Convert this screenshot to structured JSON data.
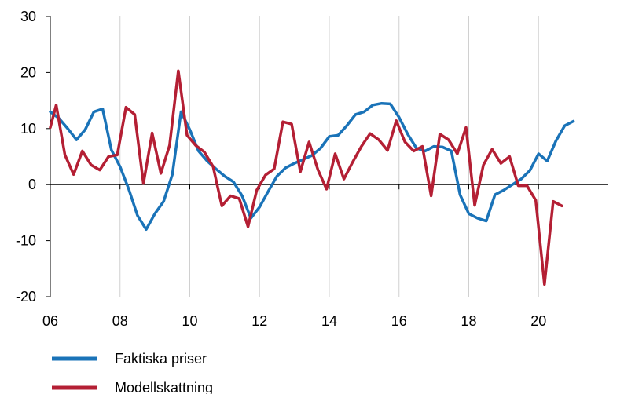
{
  "chart_data": {
    "type": "line",
    "title": "",
    "xlabel": "",
    "ylabel": "",
    "xlim": [
      2006,
      2022
    ],
    "ylim": [
      -20,
      30
    ],
    "x_ticks": [
      {
        "value": 2006,
        "label": "06"
      },
      {
        "value": 2008,
        "label": "08"
      },
      {
        "value": 2010,
        "label": "10"
      },
      {
        "value": 2012,
        "label": "12"
      },
      {
        "value": 2014,
        "label": "14"
      },
      {
        "value": 2016,
        "label": "16"
      },
      {
        "value": 2018,
        "label": "18"
      },
      {
        "value": 2020,
        "label": "20"
      }
    ],
    "y_ticks": [
      {
        "value": 30,
        "label": "30"
      },
      {
        "value": 20,
        "label": "20"
      },
      {
        "value": 10,
        "label": "10"
      },
      {
        "value": 0,
        "label": "0"
      },
      {
        "value": -10,
        "label": "-10"
      },
      {
        "value": -20,
        "label": "-20"
      }
    ],
    "grid": "vertical",
    "legend_position": "bottom-left",
    "series": [
      {
        "name": "Faktiska priser",
        "color": "#1A73B8",
        "points": [
          [
            2006.0,
            13.0
          ],
          [
            2006.25,
            11.8
          ],
          [
            2006.5,
            10.0
          ],
          [
            2006.75,
            8.0
          ],
          [
            2007.0,
            9.8
          ],
          [
            2007.25,
            13.0
          ],
          [
            2007.5,
            13.5
          ],
          [
            2007.75,
            6.2
          ],
          [
            2008.0,
            3.2
          ],
          [
            2008.25,
            -0.8
          ],
          [
            2008.5,
            -5.5
          ],
          [
            2008.75,
            -8.0
          ],
          [
            2009.0,
            -5.2
          ],
          [
            2009.25,
            -3.0
          ],
          [
            2009.5,
            1.8
          ],
          [
            2009.75,
            13.0
          ],
          [
            2010.0,
            9.8
          ],
          [
            2010.25,
            6.0
          ],
          [
            2010.5,
            4.2
          ],
          [
            2010.75,
            2.8
          ],
          [
            2011.0,
            1.5
          ],
          [
            2011.25,
            0.5
          ],
          [
            2011.5,
            -2.0
          ],
          [
            2011.75,
            -6.0
          ],
          [
            2012.0,
            -4.0
          ],
          [
            2012.25,
            -1.2
          ],
          [
            2012.5,
            1.5
          ],
          [
            2012.75,
            3.0
          ],
          [
            2013.0,
            3.8
          ],
          [
            2013.25,
            4.5
          ],
          [
            2013.5,
            5.2
          ],
          [
            2013.75,
            6.5
          ],
          [
            2014.0,
            8.6
          ],
          [
            2014.25,
            8.8
          ],
          [
            2014.5,
            10.5
          ],
          [
            2014.75,
            12.5
          ],
          [
            2015.0,
            13.0
          ],
          [
            2015.25,
            14.2
          ],
          [
            2015.5,
            14.5
          ],
          [
            2015.75,
            14.4
          ],
          [
            2016.0,
            12.0
          ],
          [
            2016.25,
            9.0
          ],
          [
            2016.5,
            6.5
          ],
          [
            2016.75,
            6.0
          ],
          [
            2017.0,
            6.8
          ],
          [
            2017.25,
            6.7
          ],
          [
            2017.5,
            6.0
          ],
          [
            2017.75,
            -1.8
          ],
          [
            2018.0,
            -5.2
          ],
          [
            2018.25,
            -6.0
          ],
          [
            2018.5,
            -6.5
          ],
          [
            2018.75,
            -1.8
          ],
          [
            2019.0,
            -1.0
          ],
          [
            2019.25,
            0.0
          ],
          [
            2019.5,
            1.0
          ],
          [
            2019.75,
            2.5
          ],
          [
            2020.0,
            5.5
          ],
          [
            2020.25,
            4.2
          ],
          [
            2020.5,
            7.8
          ],
          [
            2020.75,
            10.5
          ],
          [
            2021.0,
            11.3
          ]
        ]
      },
      {
        "name": "Modellskattning",
        "color": "#B41F34",
        "points": [
          [
            2006.0,
            10.2
          ],
          [
            2006.17,
            14.2
          ],
          [
            2006.42,
            5.3
          ],
          [
            2006.67,
            1.8
          ],
          [
            2006.92,
            6.0
          ],
          [
            2007.17,
            3.5
          ],
          [
            2007.42,
            2.6
          ],
          [
            2007.67,
            5.0
          ],
          [
            2007.92,
            5.3
          ],
          [
            2008.17,
            13.8
          ],
          [
            2008.42,
            12.5
          ],
          [
            2008.67,
            0.2
          ],
          [
            2008.92,
            9.2
          ],
          [
            2009.17,
            2.0
          ],
          [
            2009.42,
            7.0
          ],
          [
            2009.67,
            20.3
          ],
          [
            2009.92,
            8.8
          ],
          [
            2010.17,
            7.0
          ],
          [
            2010.42,
            5.8
          ],
          [
            2010.67,
            3.2
          ],
          [
            2010.92,
            -3.8
          ],
          [
            2011.17,
            -2.0
          ],
          [
            2011.42,
            -2.5
          ],
          [
            2011.67,
            -7.5
          ],
          [
            2011.92,
            -1.0
          ],
          [
            2012.17,
            1.7
          ],
          [
            2012.42,
            2.8
          ],
          [
            2012.67,
            11.2
          ],
          [
            2012.92,
            10.8
          ],
          [
            2013.17,
            2.3
          ],
          [
            2013.42,
            7.6
          ],
          [
            2013.67,
            2.7
          ],
          [
            2013.92,
            -0.8
          ],
          [
            2014.17,
            5.5
          ],
          [
            2014.42,
            1.0
          ],
          [
            2014.67,
            4.0
          ],
          [
            2014.92,
            6.8
          ],
          [
            2015.17,
            9.1
          ],
          [
            2015.42,
            8.0
          ],
          [
            2015.67,
            6.1
          ],
          [
            2015.92,
            11.4
          ],
          [
            2016.17,
            7.6
          ],
          [
            2016.42,
            6.0
          ],
          [
            2016.67,
            6.8
          ],
          [
            2016.92,
            -2.0
          ],
          [
            2017.17,
            9.0
          ],
          [
            2017.42,
            8.0
          ],
          [
            2017.67,
            5.5
          ],
          [
            2017.92,
            10.2
          ],
          [
            2018.17,
            -3.7
          ],
          [
            2018.42,
            3.5
          ],
          [
            2018.67,
            6.3
          ],
          [
            2018.92,
            3.8
          ],
          [
            2019.17,
            5.0
          ],
          [
            2019.42,
            -0.2
          ],
          [
            2019.67,
            -0.2
          ],
          [
            2019.92,
            -2.8
          ],
          [
            2020.17,
            -17.8
          ],
          [
            2020.42,
            -3.0
          ],
          [
            2020.67,
            -3.8
          ]
        ]
      }
    ]
  }
}
